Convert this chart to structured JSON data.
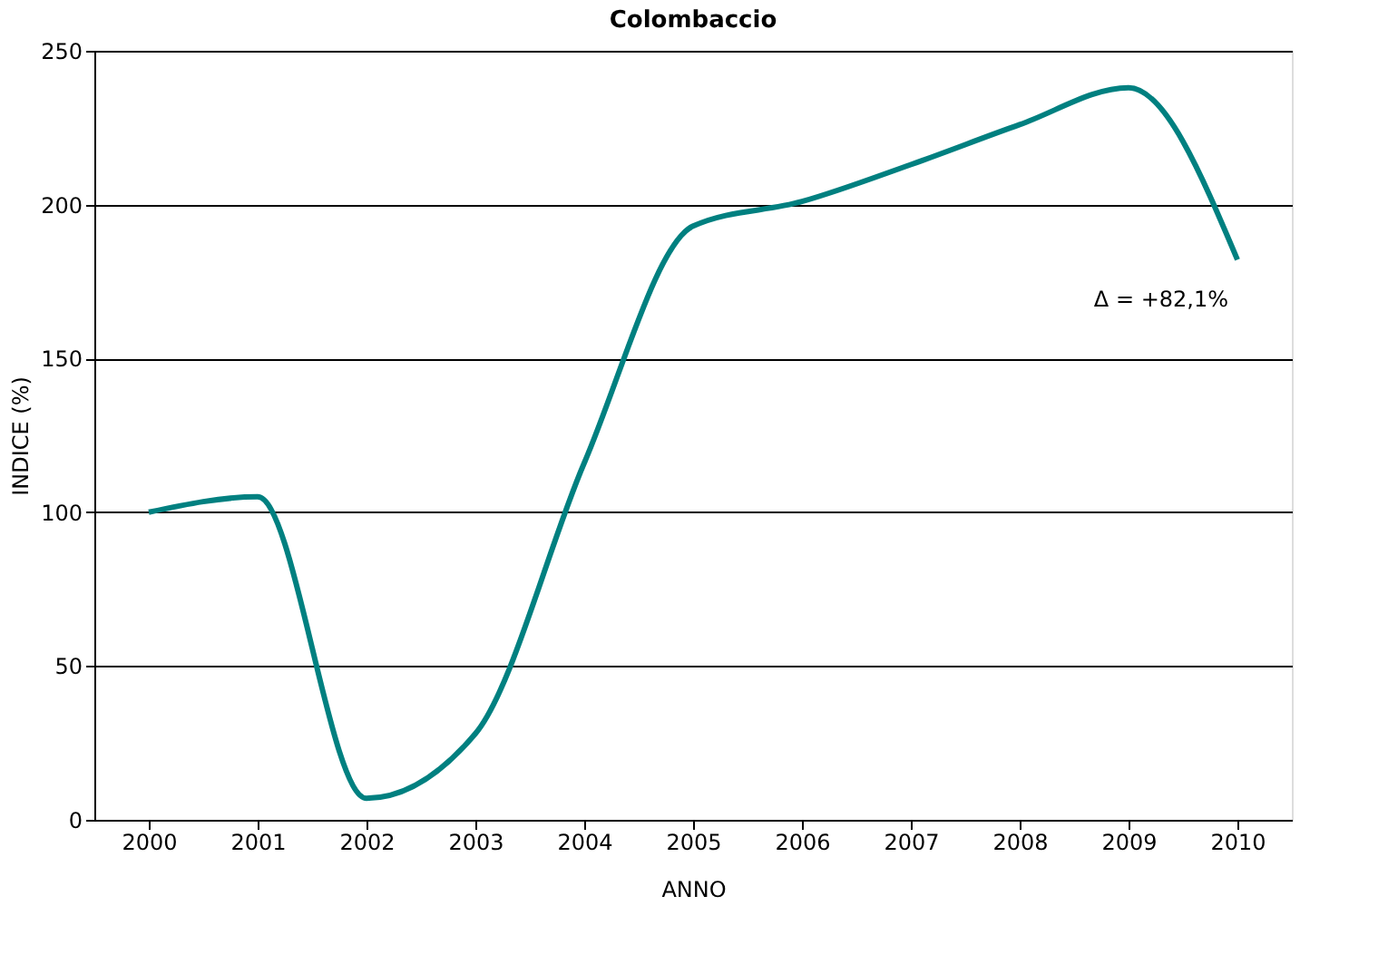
{
  "chart_data": {
    "type": "line",
    "title": "Colombaccio",
    "xlabel": "ANNO",
    "ylabel": "INDICE (%)",
    "categories": [
      "2000",
      "2001",
      "2002",
      "2003",
      "2004",
      "2005",
      "2006",
      "2007",
      "2008",
      "2009",
      "2010"
    ],
    "series": [
      {
        "color": "#008080",
        "values": [
          100,
          105,
          7,
          28,
          116,
          193,
          201,
          213,
          226,
          238,
          182.1
        ]
      }
    ],
    "ylim": [
      0,
      250
    ],
    "yticks": [
      0,
      50,
      100,
      150,
      200,
      250
    ],
    "grid": "y",
    "legend": false,
    "marker": "none",
    "line_style": "solid",
    "annotations": [
      {
        "text": "Δ = +82,1%",
        "x": "2010",
        "y": 182.1
      }
    ]
  }
}
